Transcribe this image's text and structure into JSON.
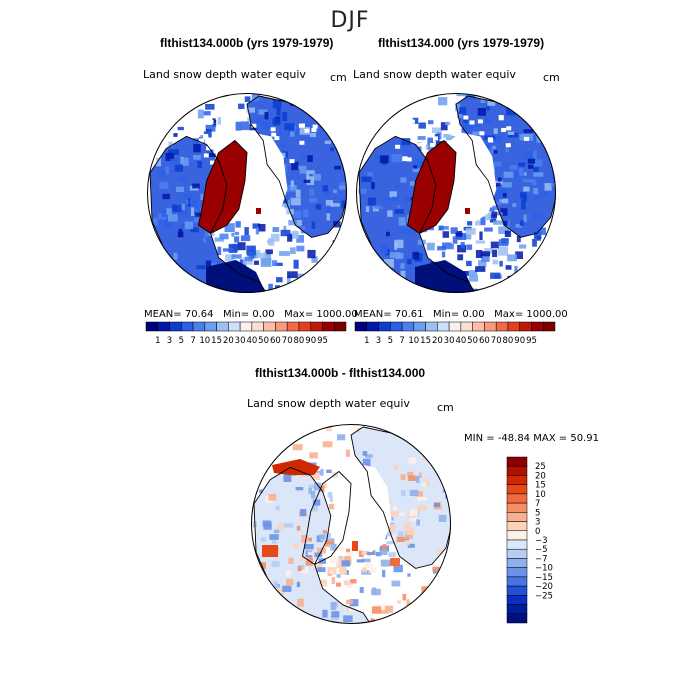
{
  "season": "DJF",
  "colors": {
    "seq": [
      "#00007f",
      "#0018a8",
      "#0a3dd0",
      "#2a5fe8",
      "#4a7ff0",
      "#6a9ff0",
      "#9cc0f5",
      "#cde0fa",
      "#f8f1ee",
      "#fde0d0",
      "#fcbfa6",
      "#f89a7c",
      "#f06a4a",
      "#e2401f",
      "#c01808",
      "#980000",
      "#7a0000"
    ],
    "land": "#ffffff",
    "coast": "#000000"
  },
  "panels": {
    "left": {
      "title": "flthist134.000b (yrs 1979-1979)",
      "variable": "Land snow depth water equiv",
      "unit": "cm",
      "mean_label": "MEAN=",
      "mean": "70.64",
      "min_label": "Min=",
      "min": "0.00",
      "max_label": "Max=",
      "max": "1000.00"
    },
    "right": {
      "title": "flthist134.000 (yrs 1979-1979)",
      "variable": "Land snow depth water equiv",
      "unit": "cm",
      "mean_label": "MEAN=",
      "mean": "70.61",
      "min_label": "Min=",
      "min": "0.00",
      "max_label": "Max=",
      "max": "1000.00"
    },
    "diff": {
      "title": "flthist134.000b - flthist134.000",
      "variable": "Land snow depth water equiv",
      "unit": "cm",
      "min_label": "MIN =",
      "min": "-48.84",
      "max_label": "MAX =",
      "max": "50.91"
    }
  },
  "chart_data": [
    {
      "type": "heatmap",
      "title": "flthist134.000b (yrs 1979-1979)",
      "variable": "Land snow depth water equiv",
      "unit": "cm",
      "projection": "north polar stereographic",
      "colorbar_ticks": [
        "1",
        "3",
        "5",
        "7",
        "10",
        "15",
        "20",
        "30",
        "40",
        "50",
        "60",
        "70",
        "80",
        "90",
        "95"
      ],
      "stats": {
        "mean": 70.64,
        "min": 0.0,
        "max": 1000.0
      }
    },
    {
      "type": "heatmap",
      "title": "flthist134.000 (yrs 1979-1979)",
      "variable": "Land snow depth water equiv",
      "unit": "cm",
      "projection": "north polar stereographic",
      "colorbar_ticks": [
        "1",
        "3",
        "5",
        "7",
        "10",
        "15",
        "20",
        "30",
        "40",
        "50",
        "60",
        "70",
        "80",
        "90",
        "95"
      ],
      "stats": {
        "mean": 70.61,
        "min": 0.0,
        "max": 1000.0
      }
    },
    {
      "type": "heatmap",
      "title": "flthist134.000b - flthist134.000",
      "variable": "Land snow depth water equiv",
      "unit": "cm",
      "projection": "north polar stereographic",
      "colorbar_ticks": [
        "25",
        "20",
        "15",
        "10",
        "7",
        "5",
        "3",
        "0",
        "−3",
        "−5",
        "−7",
        "−10",
        "−15",
        "−20",
        "−25"
      ],
      "colorbar_colors": [
        "#8b0000",
        "#b01000",
        "#d02800",
        "#e84818",
        "#f06a3c",
        "#f58e64",
        "#f8b090",
        "#fbd2bc",
        "#fdf0e8",
        "#dbe6f8",
        "#b6cdf2",
        "#8fb0ec",
        "#6a92e6",
        "#4674e0",
        "#2250d6",
        "#0a2ec2",
        "#001da0",
        "#00107a"
      ],
      "stats": {
        "min": -48.84,
        "max": 50.91
      }
    }
  ]
}
